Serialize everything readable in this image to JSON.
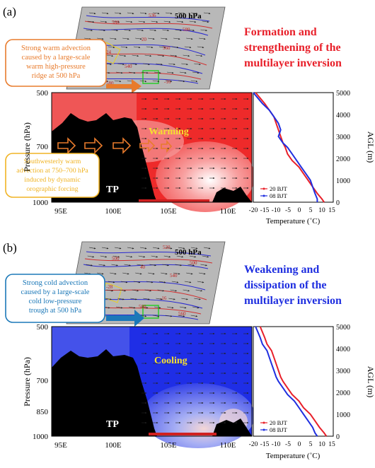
{
  "panels": [
    {
      "letter": "(a)",
      "map_level": "500 hPa",
      "title_lines": [
        "Formation and",
        "strengthening of the",
        "multilayer inversion"
      ],
      "title_color": "#e8202a",
      "callout_top_lines": [
        "Strong warm advection",
        "caused by a large-scale",
        "warm high-pressure",
        "ridge at 500 hPa"
      ],
      "callout_top_color": "#e87b2c",
      "callout_bottom_lines": [
        "Southwesterly warm",
        "advection at 750–700 hPa",
        "induced by dynamic",
        "orographic forcing"
      ],
      "callout_bottom_color": "#f0b323",
      "center_label": "Warming",
      "terrain_label": "TP",
      "fill_color": "#ee2a2a",
      "contour_labels": [
        "580",
        "24",
        "20",
        "580",
        "536",
        "560",
        "-16",
        "540",
        "580"
      ]
    },
    {
      "letter": "(b)",
      "map_level": "500 hPa",
      "title_lines": [
        "Weakening and",
        "dissipation of the",
        "multilayer inversion"
      ],
      "title_color": "#1f2fe0",
      "callout_top_lines": [
        "Strong cold advection",
        "caused by a large-scale",
        "cold low-pressure",
        "trough at 500 hPa"
      ],
      "callout_top_color": "#1b78b8",
      "callout_bottom_lines": [],
      "callout_bottom_color": "",
      "center_label": "Cooling",
      "terrain_label": "TP",
      "fill_color": "#1f2ee6",
      "contour_labels": [
        "520",
        "40",
        "500",
        "-28",
        "540",
        "-16",
        "580",
        "560",
        "500"
      ]
    }
  ],
  "cross_section_axes": {
    "ylabel": "Pressure (hPa)",
    "yticks": [
      "500",
      "700",
      "850",
      "1000"
    ],
    "xticks": [
      "95E",
      "100E",
      "105E",
      "110E"
    ]
  },
  "profile_axes": {
    "xlabel": "Temperature (˚C)",
    "xticks": [
      "-20",
      "-15",
      "-10",
      "-5",
      "0",
      "5",
      "10",
      "15"
    ],
    "ylabel": "AGL (m)",
    "yticks": [
      "5000",
      "4000",
      "3000",
      "2000",
      "1000",
      "0"
    ]
  },
  "legend": [
    {
      "name": "20 BJT",
      "color": "#e8202a"
    },
    {
      "name": "08 BJT",
      "color": "#1f2fe0"
    }
  ],
  "chart_data": [
    {
      "type": "line",
      "title": "",
      "xlabel": "Temperature (˚C)",
      "ylabel": "AGL (m)",
      "xlim": [
        -20,
        15
      ],
      "ylim": [
        0,
        5000
      ],
      "series": [
        {
          "name": "20 BJT",
          "x": [
            -19,
            -17,
            -15,
            -13,
            -11,
            -10,
            -9,
            -8,
            -7,
            -6,
            -5,
            -3,
            0,
            2,
            4,
            6,
            8,
            10,
            11
          ],
          "y": [
            5000,
            4750,
            4500,
            4200,
            3900,
            3600,
            3300,
            3000,
            2700,
            2500,
            2200,
            1900,
            1600,
            1300,
            1000,
            700,
            400,
            150,
            0
          ]
        },
        {
          "name": "08 BJT",
          "x": [
            -20,
            -18,
            -16,
            -13,
            -11,
            -9,
            -8,
            -9,
            -7,
            -5,
            -3,
            -1,
            1,
            3,
            5,
            6,
            7,
            8,
            8
          ],
          "y": [
            5000,
            4750,
            4500,
            4200,
            3900,
            3600,
            3300,
            3000,
            2700,
            2500,
            2200,
            1900,
            1600,
            1300,
            1000,
            700,
            400,
            150,
            0
          ]
        }
      ]
    },
    {
      "type": "line",
      "title": "",
      "xlabel": "Temperature (˚C)",
      "ylabel": "AGL (m)",
      "xlim": [
        -20,
        15
      ],
      "ylim": [
        0,
        5000
      ],
      "series": [
        {
          "name": "20 BJT",
          "x": [
            -17,
            -16,
            -15,
            -14,
            -12,
            -11,
            -10,
            -9,
            -8,
            -7,
            -5,
            -3,
            0,
            2,
            5,
            7,
            9,
            11,
            12
          ],
          "y": [
            5000,
            4750,
            4500,
            4200,
            3900,
            3600,
            3300,
            3000,
            2700,
            2500,
            2200,
            1900,
            1600,
            1300,
            1000,
            700,
            400,
            150,
            0
          ]
        },
        {
          "name": "08 BJT",
          "x": [
            -19,
            -18,
            -17,
            -16,
            -14,
            -13,
            -12,
            -11,
            -10,
            -9,
            -7,
            -5,
            -2,
            0,
            2,
            4,
            6,
            7,
            8
          ],
          "y": [
            5000,
            4750,
            4500,
            4200,
            3900,
            3600,
            3300,
            3000,
            2700,
            2500,
            2200,
            1900,
            1600,
            1300,
            1000,
            700,
            400,
            150,
            0
          ]
        }
      ]
    }
  ]
}
